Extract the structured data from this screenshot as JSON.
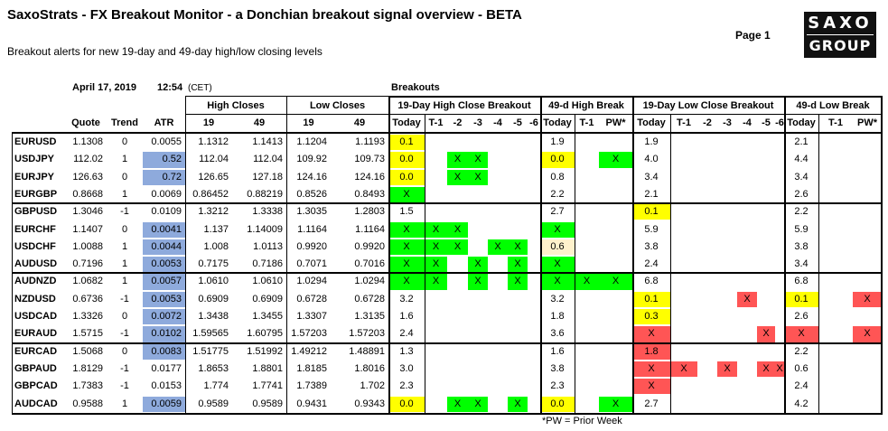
{
  "header": {
    "title": "SaxoStrats - FX Breakout Monitor - a Donchian breakout signal overview - BETA",
    "subtitle": "Breakout alerts for new 19-day and 49-day high/low closing levels",
    "page": "Page 1",
    "logo_line1": "SAXO",
    "logo_line2": "GROUP",
    "date": "April 17, 2019",
    "time": "12:54",
    "timezone": "(CET)",
    "breakouts_label": "Breakouts",
    "footnote": "*PW = Prior Week"
  },
  "colors": {
    "green": "#00ff00",
    "yellow": "#ffff00",
    "red": "#ff5555",
    "blue": "#8eaadc",
    "cream": "#fff2cc"
  },
  "group_headers": {
    "high_closes": "High Closes",
    "low_closes": "Low Closes",
    "h19": "19-Day High Close Breakout",
    "h49": "49-d High Break",
    "l19": "19-Day Low Close Breakout",
    "l49": "49-d Low Break"
  },
  "column_headers": [
    "Quote",
    "Trend",
    "ATR",
    "19",
    "49",
    "19",
    "49",
    "Today",
    "T-1",
    "-2",
    "-3",
    "-4",
    "-5",
    "-6",
    "Today",
    "T-1",
    "PW*",
    "Today",
    "T-1",
    "-2",
    "-3",
    "-4",
    "-5",
    "-6",
    "Today",
    "T-1",
    "PW*"
  ],
  "rows": [
    [
      "EURUSD",
      "1.1308",
      "0",
      "0.0055",
      "1.1312",
      "1.1413",
      "1.1204",
      "1.1193",
      "0.1",
      "",
      "",
      "",
      "",
      "",
      "",
      "1.9",
      "",
      "",
      "1.9",
      "",
      "",
      "",
      "",
      "",
      "",
      "2.1",
      "",
      ""
    ],
    [
      "USDJPY",
      "112.02",
      "1",
      "0.52",
      "112.04",
      "112.04",
      "109.92",
      "109.73",
      "0.0",
      "",
      "X",
      "X",
      "",
      "",
      "",
      "0.0",
      "",
      "X",
      "4.0",
      "",
      "",
      "",
      "",
      "",
      "",
      "4.4",
      "",
      ""
    ],
    [
      "EURJPY",
      "126.63",
      "0",
      "0.72",
      "126.65",
      "127.18",
      "124.16",
      "124.16",
      "0.0",
      "",
      "X",
      "X",
      "",
      "",
      "",
      "0.8",
      "",
      "",
      "3.4",
      "",
      "",
      "",
      "",
      "",
      "",
      "3.4",
      "",
      ""
    ],
    [
      "EURGBP",
      "0.8668",
      "1",
      "0.0069",
      "0.86452",
      "0.88219",
      "0.8526",
      "0.8493",
      "X",
      "",
      "",
      "",
      "",
      "",
      "",
      "2.2",
      "",
      "",
      "2.1",
      "",
      "",
      "",
      "",
      "",
      "",
      "2.6",
      "",
      ""
    ],
    [
      "GBPUSD",
      "1.3046",
      "-1",
      "0.0109",
      "1.3212",
      "1.3338",
      "1.3035",
      "1.2803",
      "1.5",
      "",
      "",
      "",
      "",
      "",
      "",
      "2.7",
      "",
      "",
      "0.1",
      "",
      "",
      "",
      "",
      "",
      "",
      "2.2",
      "",
      ""
    ],
    [
      "EURCHF",
      "1.1407",
      "0",
      "0.0041",
      "1.137",
      "1.14009",
      "1.1164",
      "1.1164",
      "X",
      "X",
      "X",
      "",
      "",
      "",
      "",
      "X",
      "",
      "",
      "5.9",
      "",
      "",
      "",
      "",
      "",
      "",
      "5.9",
      "",
      ""
    ],
    [
      "USDCHF",
      "1.0088",
      "1",
      "0.0044",
      "1.008",
      "1.0113",
      "0.9920",
      "0.9920",
      "X",
      "X",
      "X",
      "",
      "X",
      "X",
      "",
      "0.6",
      "",
      "",
      "3.8",
      "",
      "",
      "",
      "",
      "",
      "",
      "3.8",
      "",
      ""
    ],
    [
      "AUDUSD",
      "0.7196",
      "1",
      "0.0053",
      "0.7175",
      "0.7186",
      "0.7071",
      "0.7016",
      "X",
      "X",
      "",
      "X",
      "",
      "X",
      "",
      "X",
      "",
      "",
      "2.4",
      "",
      "",
      "",
      "",
      "",
      "",
      "3.4",
      "",
      ""
    ],
    [
      "AUDNZD",
      "1.0682",
      "1",
      "0.0057",
      "1.0610",
      "1.0610",
      "1.0294",
      "1.0294",
      "X",
      "X",
      "",
      "X",
      "",
      "X",
      "",
      "X",
      "X",
      "X",
      "6.8",
      "",
      "",
      "",
      "",
      "",
      "",
      "6.8",
      "",
      ""
    ],
    [
      "NZDUSD",
      "0.6736",
      "-1",
      "0.0053",
      "0.6909",
      "0.6909",
      "0.6728",
      "0.6728",
      "3.2",
      "",
      "",
      "",
      "",
      "",
      "",
      "3.2",
      "",
      "",
      "0.1",
      "",
      "",
      "",
      "X",
      "",
      "",
      "0.1",
      "",
      "X"
    ],
    [
      "USDCAD",
      "1.3326",
      "0",
      "0.0072",
      "1.3438",
      "1.3455",
      "1.3307",
      "1.3135",
      "1.6",
      "",
      "",
      "",
      "",
      "",
      "",
      "1.8",
      "",
      "",
      "0.3",
      "",
      "",
      "",
      "",
      "",
      "",
      "2.6",
      "",
      ""
    ],
    [
      "EURAUD",
      "1.5715",
      "-1",
      "0.0102",
      "1.59565",
      "1.60795",
      "1.57203",
      "1.57203",
      "2.4",
      "",
      "",
      "",
      "",
      "",
      "",
      "3.6",
      "",
      "",
      "X",
      "",
      "",
      "",
      "",
      "X",
      "",
      "X",
      "",
      "X"
    ],
    [
      "EURCAD",
      "1.5068",
      "0",
      "0.0083",
      "1.51775",
      "1.51992",
      "1.49212",
      "1.48891",
      "1.3",
      "",
      "",
      "",
      "",
      "",
      "",
      "1.6",
      "",
      "",
      "1.8",
      "",
      "",
      "",
      "",
      "",
      "",
      "2.2",
      "",
      ""
    ],
    [
      "GBPAUD",
      "1.8129",
      "-1",
      "0.0177",
      "1.8653",
      "1.8801",
      "1.8185",
      "1.8016",
      "3.0",
      "",
      "",
      "",
      "",
      "",
      "",
      "3.8",
      "",
      "",
      "X",
      "X",
      "",
      "X",
      "",
      "X",
      "X",
      "0.6",
      "",
      ""
    ],
    [
      "GBPCAD",
      "1.7383",
      "-1",
      "0.0153",
      "1.774",
      "1.7741",
      "1.7389",
      "1.702",
      "2.3",
      "",
      "",
      "",
      "",
      "",
      "",
      "2.3",
      "",
      "",
      "X",
      "",
      "",
      "",
      "",
      "",
      "",
      "2.4",
      "",
      ""
    ],
    [
      "AUDCAD",
      "0.9588",
      "1",
      "0.0059",
      "0.9589",
      "0.9589",
      "0.9431",
      "0.9343",
      "0.0",
      "",
      "X",
      "X",
      "",
      "X",
      "",
      "0.0",
      "",
      "X",
      "2.7",
      "",
      "",
      "",
      "",
      "",
      "",
      "4.2",
      "",
      ""
    ]
  ],
  "highlights": [
    [
      "",
      "",
      "",
      "",
      "",
      "",
      "",
      "",
      "y",
      "",
      "",
      "",
      "",
      "",
      "",
      "",
      "",
      "",
      "",
      "",
      "",
      "",
      "",
      "",
      "",
      "",
      "",
      ""
    ],
    [
      "",
      "",
      "",
      "bl",
      "",
      "",
      "",
      "",
      "y",
      "",
      "g",
      "g",
      "",
      "",
      "",
      "y",
      "",
      "g",
      "",
      "",
      "",
      "",
      "",
      "",
      "",
      "",
      "",
      ""
    ],
    [
      "",
      "",
      "",
      "bl",
      "",
      "",
      "",
      "",
      "y",
      "",
      "g",
      "g",
      "",
      "",
      "",
      "",
      "",
      "",
      "",
      "",
      "",
      "",
      "",
      "",
      "",
      "",
      "",
      ""
    ],
    [
      "",
      "",
      "",
      "",
      "",
      "",
      "",
      "",
      "g",
      "",
      "",
      "",
      "",
      "",
      "",
      "",
      "",
      "",
      "",
      "",
      "",
      "",
      "",
      "",
      "",
      "",
      "",
      ""
    ],
    [
      "",
      "",
      "",
      "",
      "",
      "",
      "",
      "",
      "",
      "",
      "",
      "",
      "",
      "",
      "",
      "",
      "",
      "",
      "y",
      "",
      "",
      "",
      "",
      "",
      "",
      "",
      "",
      ""
    ],
    [
      "",
      "",
      "",
      "bl",
      "",
      "",
      "",
      "",
      "g",
      "g",
      "g",
      "",
      "",
      "",
      "",
      "g",
      "",
      "",
      "",
      "",
      "",
      "",
      "",
      "",
      "",
      "",
      "",
      ""
    ],
    [
      "",
      "",
      "",
      "bl",
      "",
      "",
      "",
      "",
      "g",
      "g",
      "g",
      "",
      "g",
      "g",
      "",
      "cr",
      "",
      "",
      "",
      "",
      "",
      "",
      "",
      "",
      "",
      "",
      "",
      ""
    ],
    [
      "",
      "",
      "",
      "bl",
      "",
      "",
      "",
      "",
      "g",
      "g",
      "",
      "g",
      "",
      "g",
      "",
      "g",
      "",
      "",
      "",
      "",
      "",
      "",
      "",
      "",
      "",
      "",
      "",
      ""
    ],
    [
      "",
      "",
      "",
      "bl",
      "",
      "",
      "",
      "",
      "g",
      "g",
      "",
      "g",
      "",
      "g",
      "",
      "g",
      "g",
      "g",
      "",
      "",
      "",
      "",
      "",
      "",
      "",
      "",
      "",
      ""
    ],
    [
      "",
      "",
      "",
      "bl",
      "",
      "",
      "",
      "",
      "",
      "",
      "",
      "",
      "",
      "",
      "",
      "",
      "",
      "",
      "y",
      "",
      "",
      "",
      "r",
      "",
      "",
      "y",
      "",
      "r"
    ],
    [
      "",
      "",
      "",
      "bl",
      "",
      "",
      "",
      "",
      "",
      "",
      "",
      "",
      "",
      "",
      "",
      "",
      "",
      "",
      "y",
      "",
      "",
      "",
      "",
      "",
      "",
      "",
      "",
      ""
    ],
    [
      "",
      "",
      "",
      "bl",
      "",
      "",
      "",
      "",
      "",
      "",
      "",
      "",
      "",
      "",
      "",
      "",
      "",
      "",
      "r",
      "",
      "",
      "",
      "",
      "r",
      "",
      "r",
      "",
      "r"
    ],
    [
      "",
      "",
      "",
      "bl",
      "",
      "",
      "",
      "",
      "",
      "",
      "",
      "",
      "",
      "",
      "",
      "",
      "",
      "",
      "r",
      "",
      "",
      "",
      "",
      "",
      "",
      "",
      "",
      ""
    ],
    [
      "",
      "",
      "",
      "",
      "",
      "",
      "",
      "",
      "",
      "",
      "",
      "",
      "",
      "",
      "",
      "",
      "",
      "",
      "r",
      "r",
      "",
      "r",
      "",
      "r",
      "r",
      "",
      "",
      ""
    ],
    [
      "",
      "",
      "",
      "",
      "",
      "",
      "",
      "",
      "",
      "",
      "",
      "",
      "",
      "",
      "",
      "",
      "",
      "",
      "r",
      "",
      "",
      "",
      "",
      "",
      "",
      "",
      "",
      ""
    ],
    [
      "",
      "",
      "",
      "bl",
      "",
      "",
      "",
      "",
      "y",
      "",
      "g",
      "g",
      "",
      "g",
      "",
      "y",
      "",
      "g",
      "",
      "",
      "",
      "",
      "",
      "",
      "",
      "",
      "",
      ""
    ]
  ]
}
